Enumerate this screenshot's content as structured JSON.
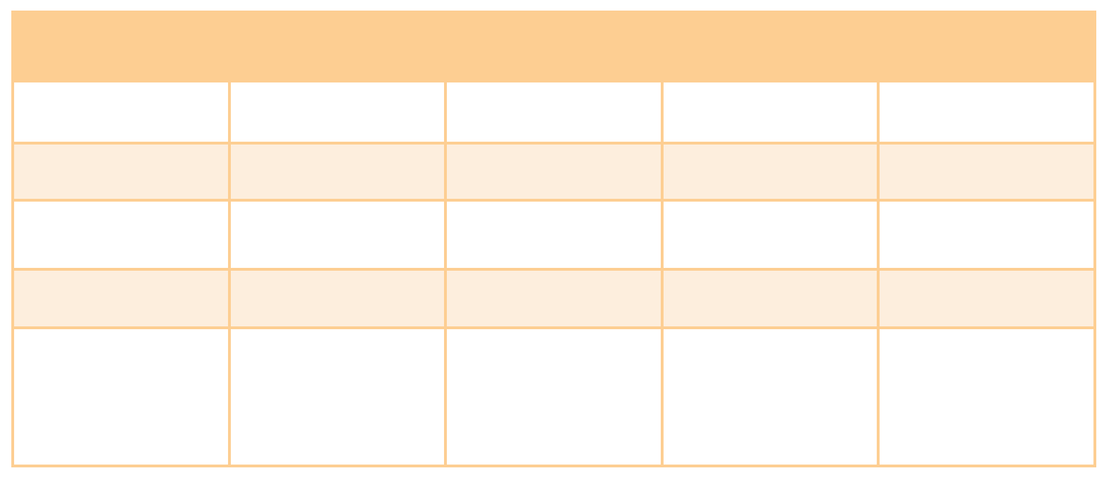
{
  "table": {
    "header_label": "",
    "column_count": 5,
    "columns": [
      "",
      "",
      "",
      "",
      ""
    ],
    "rows": [
      {
        "cells": [
          "",
          "",
          "",
          "",
          ""
        ]
      },
      {
        "cells": [
          "",
          "",
          "",
          "",
          ""
        ]
      },
      {
        "cells": [
          "",
          "",
          "",
          "",
          ""
        ]
      },
      {
        "cells": [
          "",
          "",
          "",
          "",
          ""
        ]
      },
      {
        "cells": [
          "",
          "",
          "",
          "",
          ""
        ]
      }
    ]
  },
  "colors": {
    "header_background": "#FDCE92",
    "border": "#FDCE92",
    "banded_row_background": "#FDEEDD",
    "row_background": "#FFFFFF",
    "page_background": "#FFFFFF"
  }
}
